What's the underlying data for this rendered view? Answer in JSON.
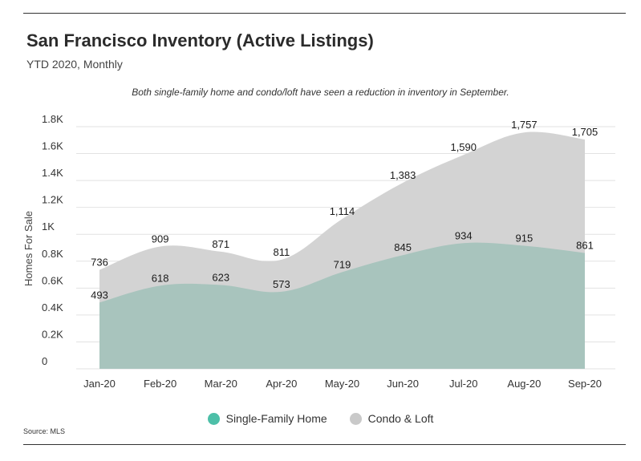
{
  "header": {
    "title": "San Francisco Inventory (Active Listings)",
    "subtitle": "YTD 2020, Monthly"
  },
  "annotation": "Both single-family home and condo/loft have seen a reduction in inventory in September.",
  "source": "Source: MLS",
  "chart_data": {
    "type": "area",
    "categories": [
      "Jan-20",
      "Feb-20",
      "Mar-20",
      "Apr-20",
      "May-20",
      "Jun-20",
      "Jul-20",
      "Aug-20",
      "Sep-20"
    ],
    "series": [
      {
        "name": "Single-Family Home",
        "values": [
          493,
          618,
          623,
          573,
          719,
          845,
          934,
          915,
          861
        ],
        "labels": [
          "493",
          "618",
          "623",
          "573",
          "719",
          "845",
          "934",
          "915",
          "861"
        ],
        "color": "#a8c4bd"
      },
      {
        "name": "Condo & Loft",
        "values": [
          736,
          909,
          871,
          811,
          1114,
          1383,
          1590,
          1757,
          1705
        ],
        "labels": [
          "736",
          "909",
          "871",
          "811",
          "1,114",
          "1,383",
          "1,590",
          "1,757",
          "1,705"
        ],
        "color": "#d3d3d3"
      }
    ],
    "ylabel": "Homes For Sale",
    "ylim": [
      0,
      1800
    ],
    "yticks": [
      {
        "value": 0,
        "label": "0"
      },
      {
        "value": 200,
        "label": "0.2K"
      },
      {
        "value": 400,
        "label": "0.4K"
      },
      {
        "value": 600,
        "label": "0.6K"
      },
      {
        "value": 800,
        "label": "0.8K"
      },
      {
        "value": 1000,
        "label": "1K"
      },
      {
        "value": 1200,
        "label": "1.2K"
      },
      {
        "value": 1400,
        "label": "1.4K"
      },
      {
        "value": 1600,
        "label": "1.6K"
      },
      {
        "value": 1800,
        "label": "1.8K"
      }
    ],
    "grid": true,
    "legend_position": "bottom",
    "legend_swatch_colors": [
      "#4dbfa8",
      "#c9c9c9"
    ]
  }
}
